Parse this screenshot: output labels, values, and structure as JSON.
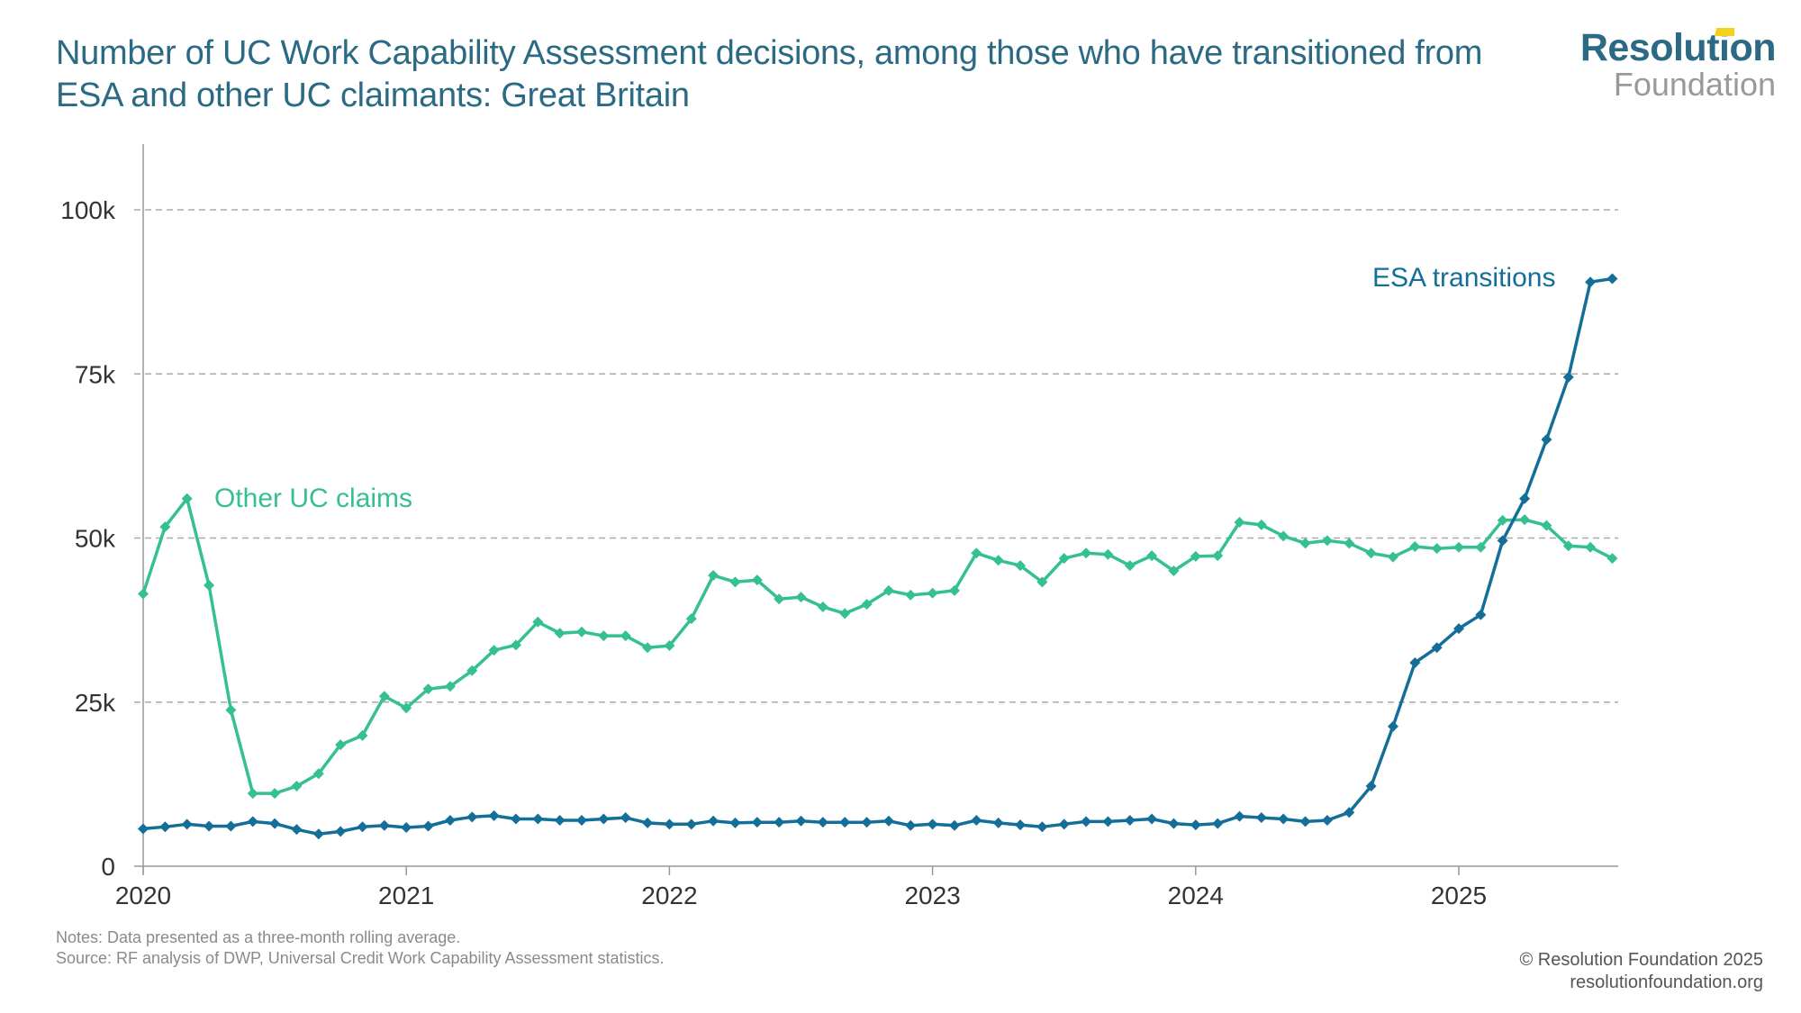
{
  "header": {
    "title": "Number of UC Work Capability Assessment decisions, among those who have transitioned from ESA and other UC claimants: Great Britain"
  },
  "logo": {
    "line1": "Resolution",
    "line2": "Foundation",
    "accent_color": "#f2d21b",
    "primary_color": "#2b6a84"
  },
  "footer": {
    "notes": "Notes: Data presented as a three-month rolling average.",
    "source": "Source: RF analysis of DWP, Universal Credit Work Capability Assessment statistics.",
    "copyright": "© Resolution Foundation 2025",
    "website": "resolutionfoundation.org"
  },
  "chart_data": {
    "type": "line",
    "title": "Number of UC Work Capability Assessment decisions, among those who have transitioned from ESA and other UC claimants: Great Britain",
    "xlabel": "",
    "ylabel": "",
    "x_start": "2020-01",
    "x_end": "2025-08",
    "x_frequency": "monthly",
    "x_ticks": [
      "2020",
      "2021",
      "2022",
      "2023",
      "2024",
      "2025"
    ],
    "y_ticks": [
      {
        "value": 0,
        "label": "0"
      },
      {
        "value": 25000,
        "label": "25k"
      },
      {
        "value": 50000,
        "label": "50k"
      },
      {
        "value": 75000,
        "label": "75k"
      },
      {
        "value": 100000,
        "label": "100k"
      }
    ],
    "ylim": [
      0,
      110000
    ],
    "grid": "horizontal dashed",
    "legend": "direct labels",
    "series": [
      {
        "name": "Other UC claims",
        "label": "Other UC claims",
        "color": "#35c08f",
        "values": [
          41500,
          51700,
          56000,
          42800,
          23800,
          11100,
          11100,
          12200,
          14100,
          18500,
          19900,
          25900,
          24100,
          27000,
          27400,
          29800,
          32900,
          33700,
          37200,
          35500,
          35700,
          35100,
          35100,
          33300,
          33600,
          37700,
          44300,
          43300,
          43600,
          40700,
          41000,
          39500,
          38500,
          39900,
          42000,
          41300,
          41600,
          42000,
          47700,
          46600,
          45800,
          43300,
          46900,
          47700,
          47500,
          45800,
          47300,
          45000,
          47200,
          47300,
          52400,
          52000,
          50300,
          49200,
          49600,
          49200,
          47700,
          47100,
          48700,
          48400,
          48600,
          48600,
          52700,
          52800,
          51900,
          48800,
          48600,
          46900
        ]
      },
      {
        "name": "ESA transitions",
        "label": "ESA transitions",
        "color": "#136f98",
        "values": [
          5700,
          6000,
          6400,
          6100,
          6100,
          6800,
          6500,
          5600,
          4900,
          5300,
          6000,
          6200,
          5900,
          6100,
          7000,
          7500,
          7700,
          7200,
          7200,
          7000,
          7000,
          7200,
          7400,
          6600,
          6400,
          6400,
          6900,
          6600,
          6700,
          6700,
          6900,
          6700,
          6700,
          6700,
          6900,
          6200,
          6400,
          6200,
          7000,
          6600,
          6300,
          6000,
          6400,
          6800,
          6800,
          7000,
          7200,
          6500,
          6300,
          6500,
          7600,
          7400,
          7200,
          6800,
          7000,
          8200,
          12200,
          21300,
          31000,
          33300,
          36200,
          38300,
          49600,
          56000,
          65000,
          74500,
          89000,
          89500
        ]
      }
    ]
  }
}
